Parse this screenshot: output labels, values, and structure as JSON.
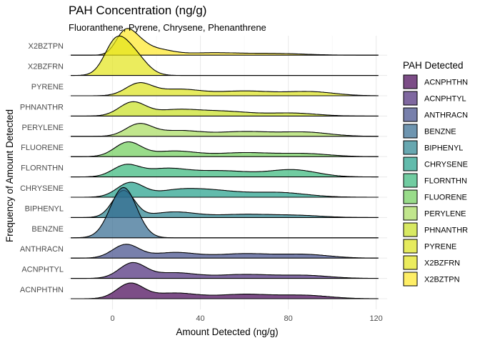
{
  "chart_data": {
    "type": "ridgeline",
    "title": "PAH Concentration (ng/g)",
    "subtitle": "Fluoranthene, Pyrene, Chrysene, Phenanthrene",
    "xlabel": "Amount Detected (ng/g)",
    "ylabel": "Frequency of Amount Detected",
    "xlim": [
      -20,
      125
    ],
    "x_ticks": [
      0,
      40,
      80,
      120
    ],
    "grid": true,
    "legend": {
      "title": "PAH Detected",
      "position": "right",
      "entries": [
        "ACNPHTHN",
        "ACNPHTYL",
        "ANTHRACN",
        "BENZNE",
        "BIPHENYL",
        "CHRYSENE",
        "FLORNTHN",
        "FLUORENE",
        "PERYLENE",
        "PHNANTHR",
        "PYRENE",
        "X2BZFRN",
        "X2BZTPN"
      ]
    },
    "series": [
      {
        "name": "ACNPHTHN",
        "color": "#440154",
        "range": [
          -19,
          121
        ],
        "peaks": [
          [
            8,
            6,
            0.95
          ],
          [
            28,
            10,
            0.35
          ],
          [
            60,
            13,
            0.28
          ],
          [
            88,
            11,
            0.2
          ]
        ]
      },
      {
        "name": "ACNPHTYL",
        "color": "#482878",
        "range": [
          -19,
          121
        ],
        "peaks": [
          [
            9,
            6,
            0.95
          ],
          [
            28,
            10,
            0.35
          ],
          [
            60,
            13,
            0.25
          ],
          [
            88,
            11,
            0.18
          ]
        ]
      },
      {
        "name": "ANTHRACN",
        "color": "#3E4A89",
        "range": [
          -19,
          121
        ],
        "peaks": [
          [
            6,
            6,
            0.85
          ],
          [
            28,
            10,
            0.35
          ],
          [
            60,
            13,
            0.28
          ],
          [
            88,
            11,
            0.22
          ]
        ]
      },
      {
        "name": "BENZNE",
        "color": "#31688E",
        "range": [
          -19,
          121
        ],
        "peaks": [
          [
            5,
            6,
            3.2
          ]
        ]
      },
      {
        "name": "BIPHENYL",
        "color": "#26828E",
        "range": [
          -19,
          121
        ],
        "peaks": [
          [
            5,
            5,
            1.7
          ],
          [
            28,
            10,
            0.35
          ],
          [
            60,
            13,
            0.2
          ],
          [
            85,
            11,
            0.12
          ]
        ]
      },
      {
        "name": "CHRYSENE",
        "color": "#1F9E89",
        "range": [
          -19,
          121
        ],
        "peaks": [
          [
            8,
            6,
            0.9
          ],
          [
            28,
            10,
            0.35
          ],
          [
            45,
            12,
            0.4
          ],
          [
            75,
            13,
            0.3
          ]
        ]
      },
      {
        "name": "FLORNTHN",
        "color": "#35B779",
        "range": [
          -19,
          121
        ],
        "peaks": [
          [
            6,
            6,
            0.7
          ],
          [
            24,
            10,
            0.5
          ],
          [
            50,
            13,
            0.38
          ],
          [
            82,
            11,
            0.45
          ]
        ]
      },
      {
        "name": "FLUORENE",
        "color": "#6DCD59",
        "range": [
          -19,
          121
        ],
        "peaks": [
          [
            7,
            6,
            0.9
          ],
          [
            28,
            10,
            0.35
          ],
          [
            60,
            13,
            0.25
          ],
          [
            88,
            11,
            0.18
          ]
        ]
      },
      {
        "name": "PERYLENE",
        "color": "#A6DB5D",
        "range": [
          -19,
          121
        ],
        "peaks": [
          [
            12,
            6,
            0.75
          ],
          [
            30,
            10,
            0.35
          ],
          [
            60,
            13,
            0.3
          ],
          [
            88,
            11,
            0.25
          ]
        ]
      },
      {
        "name": "PHNANTHR",
        "color": "#C7E020",
        "range": [
          -19,
          121
        ],
        "peaks": [
          [
            9,
            6,
            0.85
          ],
          [
            28,
            10,
            0.35
          ],
          [
            50,
            13,
            0.3
          ],
          [
            82,
            11,
            0.18
          ]
        ]
      },
      {
        "name": "PYRENE",
        "color": "#DCE319",
        "range": [
          -19,
          121
        ],
        "peaks": [
          [
            12,
            6,
            0.75
          ],
          [
            30,
            10,
            0.4
          ],
          [
            60,
            13,
            0.3
          ],
          [
            90,
            11,
            0.25
          ]
        ]
      },
      {
        "name": "X2BZFRN",
        "color": "#E3E418",
        "range": [
          -19,
          121
        ],
        "peaks": [
          [
            1,
            5,
            1.8
          ],
          [
            9,
            6,
            1.4
          ]
        ]
      },
      {
        "name": "X2BZTPN",
        "color": "#FDE725",
        "range": [
          -19,
          121
        ],
        "peaks": [
          [
            5,
            4,
            1.0
          ],
          [
            10,
            5,
            0.9
          ],
          [
            20,
            7,
            0.35
          ],
          [
            45,
            13,
            0.15
          ],
          [
            75,
            13,
            0.1
          ]
        ]
      }
    ]
  }
}
